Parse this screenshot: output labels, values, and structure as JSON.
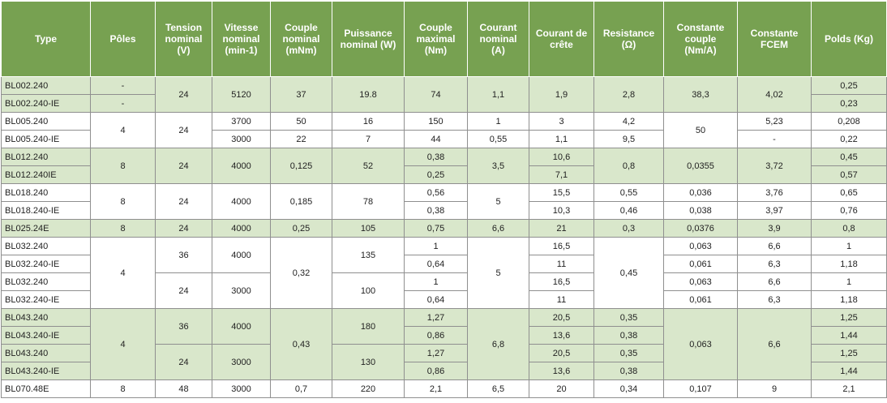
{
  "headers": {
    "type": "Type",
    "poles": "Pôles",
    "tension": [
      "Tension",
      "nominal",
      "(V)"
    ],
    "vitesse": [
      "Vitesse",
      "nominal",
      "(min-1)"
    ],
    "couple_nominal": [
      "Couple",
      "nominal",
      "(mNm)"
    ],
    "puissance": [
      "Puissance",
      "nominal (W)"
    ],
    "couple_maximal": [
      "Couple",
      "maximal",
      "(Nm)"
    ],
    "courant_nominal": [
      "Courant",
      "nominal",
      "(A)"
    ],
    "courant_crete": [
      "Courant de",
      "crête"
    ],
    "resistance": [
      "Resistance",
      "(Ω)"
    ],
    "constante_couple": [
      "Constante",
      "couple",
      "(Nm/A)"
    ],
    "constante_fcem": [
      "Constante",
      "FCEM"
    ],
    "poids": "Polds (Kg)"
  },
  "types": [
    "BL002.240",
    "BL002.240-IE",
    "BL005.240",
    "BL005.240-IE",
    "BL012.240",
    "BL012.240IE",
    "BL018.240",
    "BL018.240-IE",
    "BL025.24E",
    "BL032.240",
    "BL032.240-IE",
    "BL032.240",
    "BL032.240-IE",
    "BL043.240",
    "BL043.240-IE",
    "BL043.240",
    "BL043.240-IE",
    "BL070.48E"
  ],
  "poles": [
    "-",
    "-",
    "4",
    "8",
    "8",
    "8",
    "4",
    "4",
    "8"
  ],
  "tension": [
    "24",
    "24",
    "24",
    "24",
    "24",
    "36",
    "24",
    "36",
    "24",
    "48"
  ],
  "vitesse": [
    "5120",
    "3700",
    "3000",
    "4000",
    "4000",
    "4000",
    "4000",
    "3000",
    "4000",
    "3000",
    "3000"
  ],
  "couple_nominal": [
    "37",
    "50",
    "22",
    "0,125",
    "0,185",
    "0,25",
    "0,32",
    "0,43",
    "0,7"
  ],
  "puissance": [
    "19.8",
    "16",
    "7",
    "52",
    "78",
    "105",
    "135",
    "100",
    "180",
    "130",
    "220"
  ],
  "couple_maximal": [
    "74",
    "150",
    "44",
    "0,38",
    "0,25",
    "0,56",
    "0,38",
    "0,75",
    "1",
    "0,64",
    "1",
    "0,64",
    "1,27",
    "0,86",
    "1,27",
    "0,86",
    "2,1"
  ],
  "courant_nominal": [
    "1,1",
    "1",
    "0,55",
    "3,5",
    "5",
    "6,6",
    "5",
    "6,8",
    "6,5"
  ],
  "courant_crete": [
    "1,9",
    "3",
    "1,1",
    "10,6",
    "7,1",
    "15,5",
    "10,3",
    "21",
    "16,5",
    "11",
    "16,5",
    "11",
    "20,5",
    "13,6",
    "20,5",
    "13,6",
    "20"
  ],
  "resistance": [
    "2,8",
    "4,2",
    "9,5",
    "0,8",
    "0,55",
    "0,46",
    "0,3",
    "0,45",
    "0,35",
    "0,38",
    "0,35",
    "0,38",
    "0,34"
  ],
  "constante_couple": [
    "38,3",
    "50",
    "0,0355",
    "0,036",
    "0,038",
    "0,0376",
    "0,063",
    "0,061",
    "0,063",
    "0,061",
    "0,063",
    "0,107"
  ],
  "constante_fcem": [
    "4,02",
    "5,23",
    "-",
    "3,72",
    "3,76",
    "3,97",
    "3,9",
    "6,6",
    "6,3",
    "6,6",
    "6,3",
    "6,6",
    "9"
  ],
  "poids": [
    "0,25",
    "0,23",
    "0,208",
    "0,22",
    "0,45",
    "0,57",
    "0,65",
    "0,76",
    "0,8",
    "1",
    "1,18",
    "1",
    "1,18",
    "1,25",
    "1,44",
    "1,25",
    "1,44",
    "2,1"
  ],
  "colors": {
    "header_bg": "#77a151",
    "header_text": "#ffffff",
    "row_green": "#d9e7cb",
    "row_white": "#ffffff",
    "border": "#8f8f8f"
  }
}
